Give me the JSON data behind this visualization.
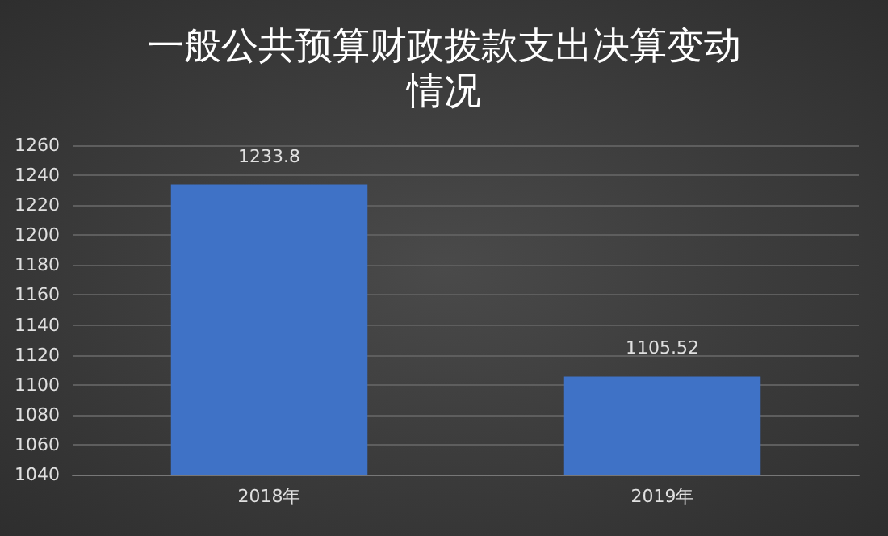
{
  "chart_data": {
    "type": "bar",
    "title": "一般公共预算财政拨款支出决算变动情况",
    "categories": [
      "2018年",
      "2019年"
    ],
    "values": [
      1233.8,
      1105.52
    ],
    "color": "#3f72c6",
    "ylim": [
      1040,
      1260
    ],
    "yticks": [
      1040,
      1060,
      1080,
      1100,
      1120,
      1140,
      1160,
      1180,
      1200,
      1220,
      1240,
      1260
    ],
    "grid": "y",
    "data_labels": true
  }
}
